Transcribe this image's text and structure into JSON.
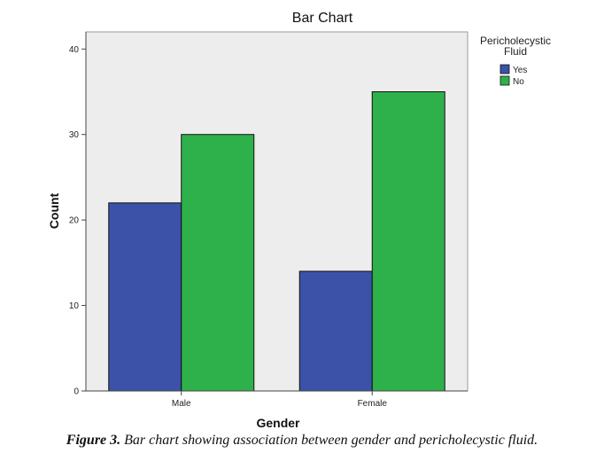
{
  "chart_data": {
    "type": "bar",
    "title": "Bar Chart",
    "xlabel": "Gender",
    "ylabel": "Count",
    "categories": [
      "Male",
      "Female"
    ],
    "series": [
      {
        "name": "Yes",
        "values": [
          22,
          14
        ],
        "color": "#3b52a8"
      },
      {
        "name": "No",
        "values": [
          30,
          35
        ],
        "color": "#2eb04a"
      }
    ],
    "ylim": [
      0,
      42
    ],
    "yticks": [
      0,
      10,
      20,
      30,
      40
    ],
    "legend": {
      "title_line1": "Pericholecystic",
      "title_line2": "Fluid",
      "position": "top-right outside plot"
    },
    "plot_background": "#ededed",
    "grid": false
  },
  "caption": {
    "lead": "Figure 3.",
    "text": " Bar chart showing association between gender and pericholecystic fluid."
  }
}
